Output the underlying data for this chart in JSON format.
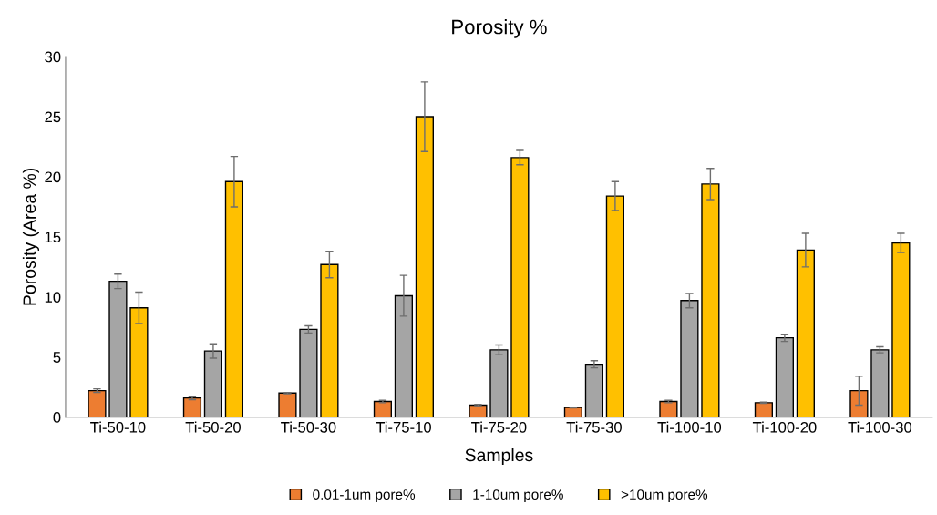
{
  "chart_data": {
    "type": "bar",
    "title": "Porosity %",
    "xlabel": "Samples",
    "ylabel": "Porosity (Area %)",
    "categories": [
      "Ti-50-10",
      "Ti-50-20",
      "Ti-50-30",
      "Ti-75-10",
      "Ti-75-20",
      "Ti-75-30",
      "Ti-100-10",
      "Ti-100-20",
      "Ti-100-30"
    ],
    "series": [
      {
        "name": "0.01-1um pore%",
        "color": "#ed7d31",
        "values": [
          2.2,
          1.6,
          2.0,
          1.3,
          1.0,
          0.8,
          1.3,
          1.2,
          2.2
        ],
        "errors": [
          0.15,
          0.15,
          0.05,
          0.1,
          0.05,
          0.03,
          0.1,
          0.05,
          1.2
        ]
      },
      {
        "name": "1-10um pore%",
        "color": "#a5a5a5",
        "values": [
          11.3,
          5.5,
          7.3,
          10.1,
          5.6,
          4.4,
          9.7,
          6.6,
          5.6
        ],
        "errors": [
          0.6,
          0.6,
          0.3,
          1.7,
          0.4,
          0.3,
          0.6,
          0.3,
          0.25
        ]
      },
      {
        "name": ">10um pore%",
        "color": "#ffc000",
        "values": [
          9.1,
          19.6,
          12.7,
          25.0,
          21.6,
          18.4,
          19.4,
          13.9,
          14.5
        ],
        "errors": [
          1.3,
          2.1,
          1.1,
          2.9,
          0.6,
          1.2,
          1.3,
          1.4,
          0.8
        ]
      }
    ],
    "ylim": [
      0,
      30
    ],
    "yticks": [
      0,
      5,
      10,
      15,
      20,
      25,
      30
    ],
    "grid": false,
    "legend": "bottom"
  }
}
